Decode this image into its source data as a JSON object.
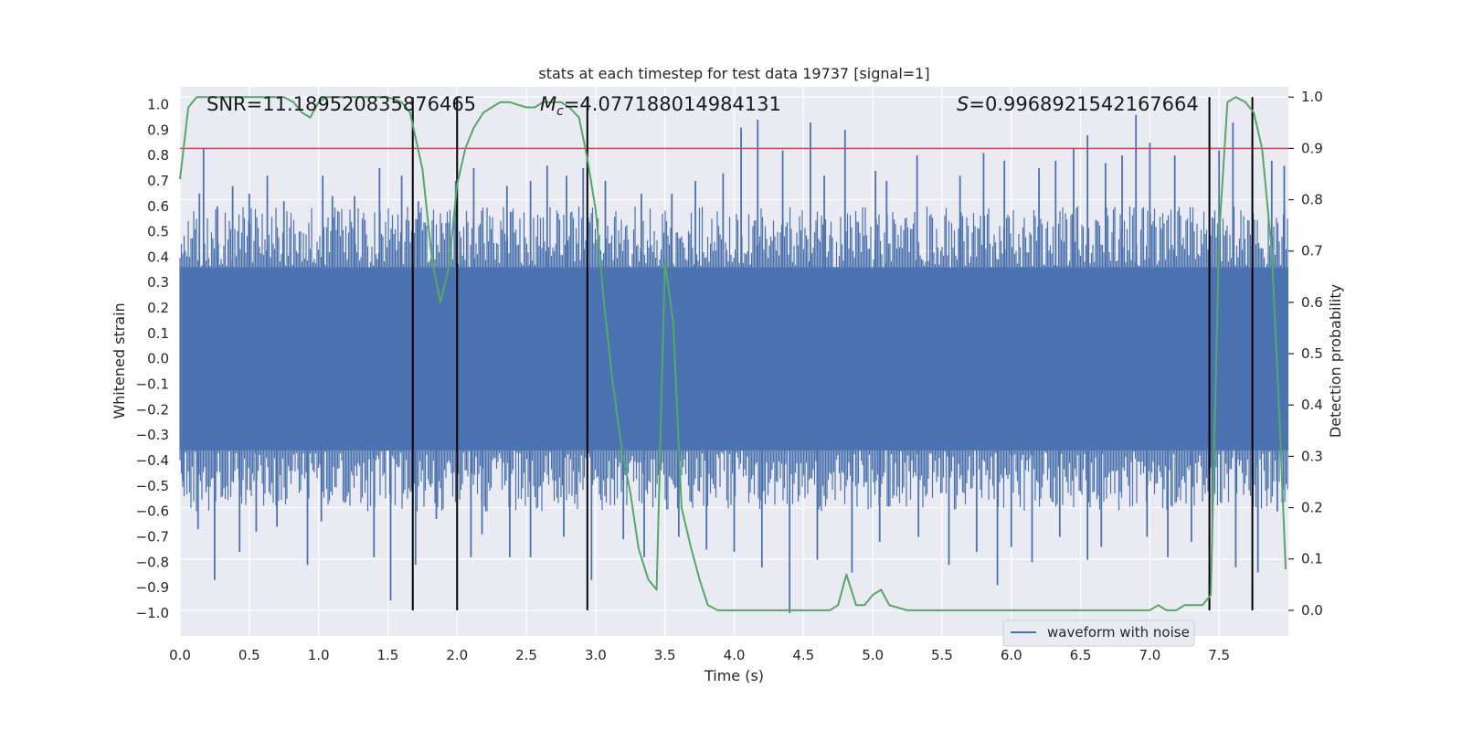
{
  "chart_data": {
    "type": "line",
    "title": "stats at each timestep for test data 19737 [signal=1]",
    "xlabel": "Time (s)",
    "ylabel_left": "Whitened strain",
    "ylabel_right": "Detection probability",
    "xlim": [
      0.0,
      8.0
    ],
    "ylim_left": [
      -1.09,
      1.07
    ],
    "ylim_right": [
      -0.05,
      1.02
    ],
    "grid": true,
    "xticks": [
      0.0,
      0.5,
      1.0,
      1.5,
      2.0,
      2.5,
      3.0,
      3.5,
      4.0,
      4.5,
      5.0,
      5.5,
      6.0,
      6.5,
      7.0,
      7.5
    ],
    "yticks_left": [
      -1.0,
      -0.9,
      -0.8,
      -0.7,
      -0.6,
      -0.5,
      -0.4,
      -0.3,
      -0.2,
      -0.1,
      0.0,
      0.1,
      0.2,
      0.3,
      0.4,
      0.5,
      0.6,
      0.7,
      0.8,
      0.9,
      1.0
    ],
    "yticks_right": [
      0.0,
      0.1,
      0.2,
      0.3,
      0.4,
      0.5,
      0.6,
      0.7,
      0.8,
      0.9,
      1.0
    ],
    "annotations": {
      "snr": "SNR=11.189520835876465",
      "mc_symbol": "M",
      "mc_sub": "c",
      "mc_value": "=4.077188014984131",
      "s_symbol": "S",
      "s_value": "=0.9968921542167664"
    },
    "threshold": {
      "axis": "right",
      "value": 0.9,
      "color": "#c44e52"
    },
    "vertical_lines": [
      1.68,
      2.0,
      2.94,
      7.43,
      7.74
    ],
    "legend": {
      "label": "waveform with noise",
      "location": "lower-right"
    },
    "waveform": {
      "name": "waveform with noise",
      "color": "#4c72b0",
      "axis": "left",
      "core_amplitude": 0.4,
      "spikes_up": [
        [
          0.17,
          0.83
        ],
        [
          0.14,
          0.65
        ],
        [
          0.27,
          0.6
        ],
        [
          0.38,
          0.68
        ],
        [
          0.5,
          0.65
        ],
        [
          0.63,
          0.72
        ],
        [
          0.75,
          0.62
        ],
        [
          1.03,
          0.72
        ],
        [
          1.1,
          0.64
        ],
        [
          1.26,
          0.64
        ],
        [
          1.44,
          0.75
        ],
        [
          1.6,
          0.72
        ],
        [
          1.72,
          0.62
        ],
        [
          1.99,
          0.7
        ],
        [
          2.12,
          0.75
        ],
        [
          2.36,
          0.68
        ],
        [
          2.53,
          0.7
        ],
        [
          2.65,
          0.76
        ],
        [
          2.79,
          0.72
        ],
        [
          2.91,
          0.75
        ],
        [
          3.07,
          0.7
        ],
        [
          3.33,
          0.65
        ],
        [
          3.55,
          0.65
        ],
        [
          3.72,
          0.7
        ],
        [
          3.92,
          0.73
        ],
        [
          4.05,
          0.91
        ],
        [
          4.17,
          0.94
        ],
        [
          4.35,
          0.82
        ],
        [
          4.55,
          0.93
        ],
        [
          4.65,
          0.72
        ],
        [
          4.8,
          0.9
        ],
        [
          5.02,
          0.74
        ],
        [
          5.1,
          0.7
        ],
        [
          5.32,
          0.8
        ],
        [
          5.63,
          0.72
        ],
        [
          5.8,
          0.81
        ],
        [
          5.95,
          0.78
        ],
        [
          6.2,
          0.75
        ],
        [
          6.32,
          0.78
        ],
        [
          6.45,
          0.83
        ],
        [
          6.55,
          0.88
        ],
        [
          6.68,
          0.77
        ],
        [
          6.8,
          0.8
        ],
        [
          6.9,
          0.96
        ],
        [
          7.0,
          0.85
        ],
        [
          7.18,
          0.8
        ],
        [
          7.5,
          0.82
        ],
        [
          7.6,
          0.93
        ],
        [
          7.88,
          0.78
        ],
        [
          7.97,
          0.76
        ]
      ],
      "spikes_down": [
        [
          0.02,
          -0.48
        ],
        [
          0.13,
          -0.67
        ],
        [
          0.25,
          -0.87
        ],
        [
          0.43,
          -0.76
        ],
        [
          0.55,
          -0.68
        ],
        [
          0.7,
          -0.66
        ],
        [
          0.92,
          -0.81
        ],
        [
          1.02,
          -0.64
        ],
        [
          1.4,
          -0.78
        ],
        [
          1.52,
          -0.95
        ],
        [
          1.7,
          -0.81
        ],
        [
          1.85,
          -0.63
        ],
        [
          2.1,
          -0.78
        ],
        [
          2.18,
          -0.69
        ],
        [
          2.38,
          -0.78
        ],
        [
          2.53,
          -0.78
        ],
        [
          2.77,
          -0.7
        ],
        [
          2.97,
          -0.87
        ],
        [
          3.2,
          -0.71
        ],
        [
          3.35,
          -0.78
        ],
        [
          3.6,
          -0.7
        ],
        [
          3.8,
          -0.75
        ],
        [
          4.0,
          -0.76
        ],
        [
          4.2,
          -0.82
        ],
        [
          4.4,
          -1.0
        ],
        [
          4.6,
          -0.79
        ],
        [
          4.85,
          -0.84
        ],
        [
          5.05,
          -0.72
        ],
        [
          5.33,
          -0.7
        ],
        [
          5.55,
          -0.81
        ],
        [
          5.75,
          -0.76
        ],
        [
          5.9,
          -0.89
        ],
        [
          6.0,
          -0.74
        ],
        [
          6.15,
          -0.8
        ],
        [
          6.35,
          -0.7
        ],
        [
          6.55,
          -0.79
        ],
        [
          6.65,
          -0.74
        ],
        [
          6.98,
          -0.7
        ],
        [
          7.13,
          -0.78
        ],
        [
          7.3,
          -0.72
        ],
        [
          7.45,
          -0.74
        ],
        [
          7.62,
          -0.82
        ],
        [
          7.78,
          -0.84
        ],
        [
          7.92,
          -0.6
        ]
      ]
    },
    "series": [
      {
        "name": "detection probability",
        "color": "#55a868",
        "axis": "right",
        "x": [
          0.0,
          0.06,
          0.12,
          0.25,
          0.5,
          0.75,
          0.82,
          0.88,
          0.94,
          1.0,
          1.06,
          1.2,
          1.31,
          1.5,
          1.6,
          1.66,
          1.75,
          1.82,
          1.88,
          1.94,
          2.0,
          2.06,
          2.12,
          2.19,
          2.25,
          2.31,
          2.38,
          2.5,
          2.56,
          2.62,
          2.69,
          2.75,
          2.81,
          2.88,
          2.94,
          3.0,
          3.06,
          3.12,
          3.19,
          3.25,
          3.31,
          3.38,
          3.44,
          3.5,
          3.56,
          3.62,
          3.69,
          3.75,
          3.81,
          3.88,
          4.0,
          4.25,
          4.5,
          4.62,
          4.69,
          4.75,
          4.81,
          4.88,
          4.94,
          5.0,
          5.06,
          5.12,
          5.25,
          5.5,
          5.75,
          6.0,
          6.25,
          6.38,
          6.5,
          6.62,
          6.75,
          6.88,
          6.94,
          7.0,
          7.06,
          7.12,
          7.19,
          7.25,
          7.31,
          7.38,
          7.44,
          7.5,
          7.56,
          7.62,
          7.69,
          7.75,
          7.81,
          7.88,
          7.94,
          7.98
        ],
        "values": [
          0.84,
          0.98,
          1.0,
          1.0,
          1.0,
          1.0,
          0.99,
          0.97,
          0.96,
          0.99,
          1.0,
          1.0,
          1.0,
          1.0,
          0.99,
          0.97,
          0.86,
          0.68,
          0.6,
          0.67,
          0.83,
          0.9,
          0.94,
          0.97,
          0.98,
          0.99,
          0.99,
          0.98,
          0.98,
          0.99,
          0.99,
          0.99,
          0.98,
          0.96,
          0.88,
          0.78,
          0.6,
          0.45,
          0.31,
          0.23,
          0.12,
          0.06,
          0.04,
          0.68,
          0.56,
          0.2,
          0.12,
          0.06,
          0.01,
          0.0,
          0.0,
          0.0,
          0.0,
          0.0,
          0.0,
          0.01,
          0.07,
          0.01,
          0.01,
          0.03,
          0.04,
          0.01,
          0.0,
          0.0,
          0.0,
          0.0,
          0.0,
          0.0,
          0.0,
          0.0,
          0.0,
          0.0,
          0.0,
          0.0,
          0.01,
          0.0,
          0.0,
          0.01,
          0.01,
          0.01,
          0.03,
          0.73,
          0.99,
          1.0,
          0.99,
          0.97,
          0.9,
          0.7,
          0.35,
          0.08
        ]
      }
    ]
  }
}
